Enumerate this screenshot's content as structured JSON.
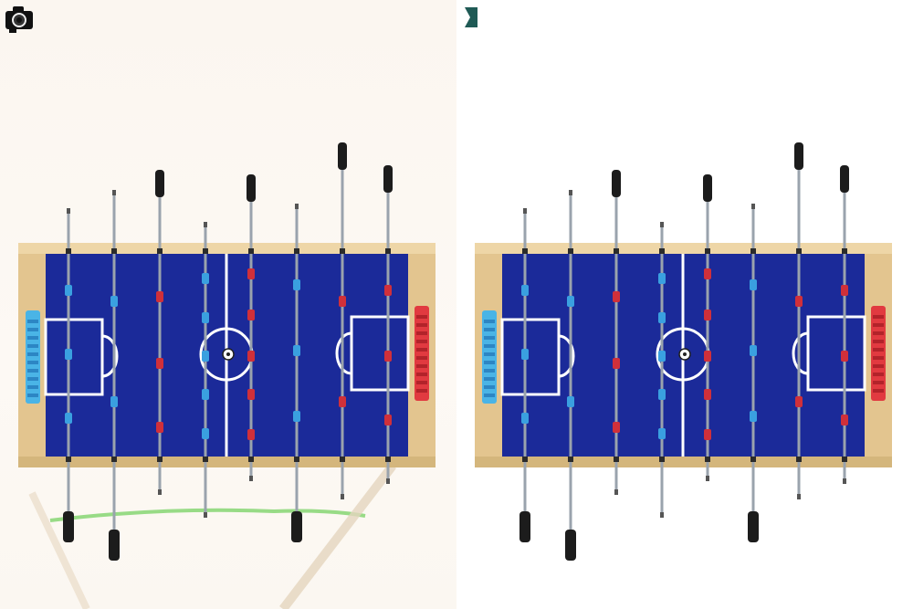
{
  "panels": [
    {
      "id": "left",
      "variant": "original-photo-background"
    },
    {
      "id": "right",
      "variant": "white-background"
    }
  ],
  "icons": {
    "left_corner": "camera-icon",
    "right_corner": "flag-icon"
  },
  "colors": {
    "field": "#1b2a99",
    "frame": "#e3c58f",
    "rod": "#9aa3ad",
    "handle": "#1c1c1c",
    "team_red": "#d0303a",
    "team_blue": "#3aa0e0",
    "score_blue": "#4ab4e6",
    "score_red": "#e13a40"
  }
}
